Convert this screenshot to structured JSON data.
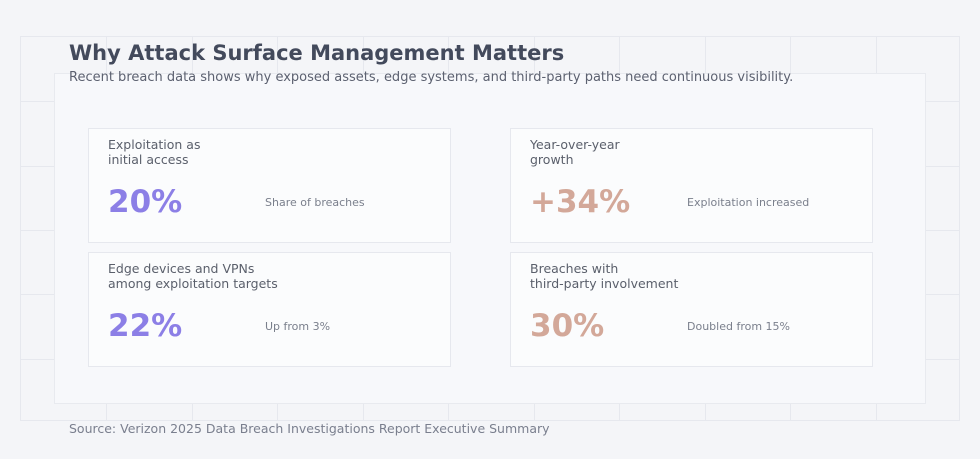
{
  "title": "Why Attack Surface Management Matters",
  "subtitle": "Recent breach data shows why exposed assets, edge systems, and third-party paths need continuous visibility.",
  "colors": {
    "purple": "#8c7fe6",
    "rose": "#d3a899"
  },
  "cards": [
    {
      "label": "Exploitation as\ninitial access",
      "value": "20%",
      "note": "Share of breaches",
      "color": "#8c7fe6"
    },
    {
      "label": "Year-over-year\ngrowth",
      "value": "+34%",
      "note": "Exploitation increased",
      "color": "#d3a899"
    },
    {
      "label": "Edge devices and VPNs\namong exploitation targets",
      "value": "22%",
      "note": "Up from 3%",
      "color": "#8c7fe6"
    },
    {
      "label": "Breaches with\nthird-party involvement",
      "value": "30%",
      "note": "Doubled from 15%",
      "color": "#d3a899"
    }
  ],
  "source": "Source: Verizon 2025 Data Breach Investigations Report Executive Summary"
}
